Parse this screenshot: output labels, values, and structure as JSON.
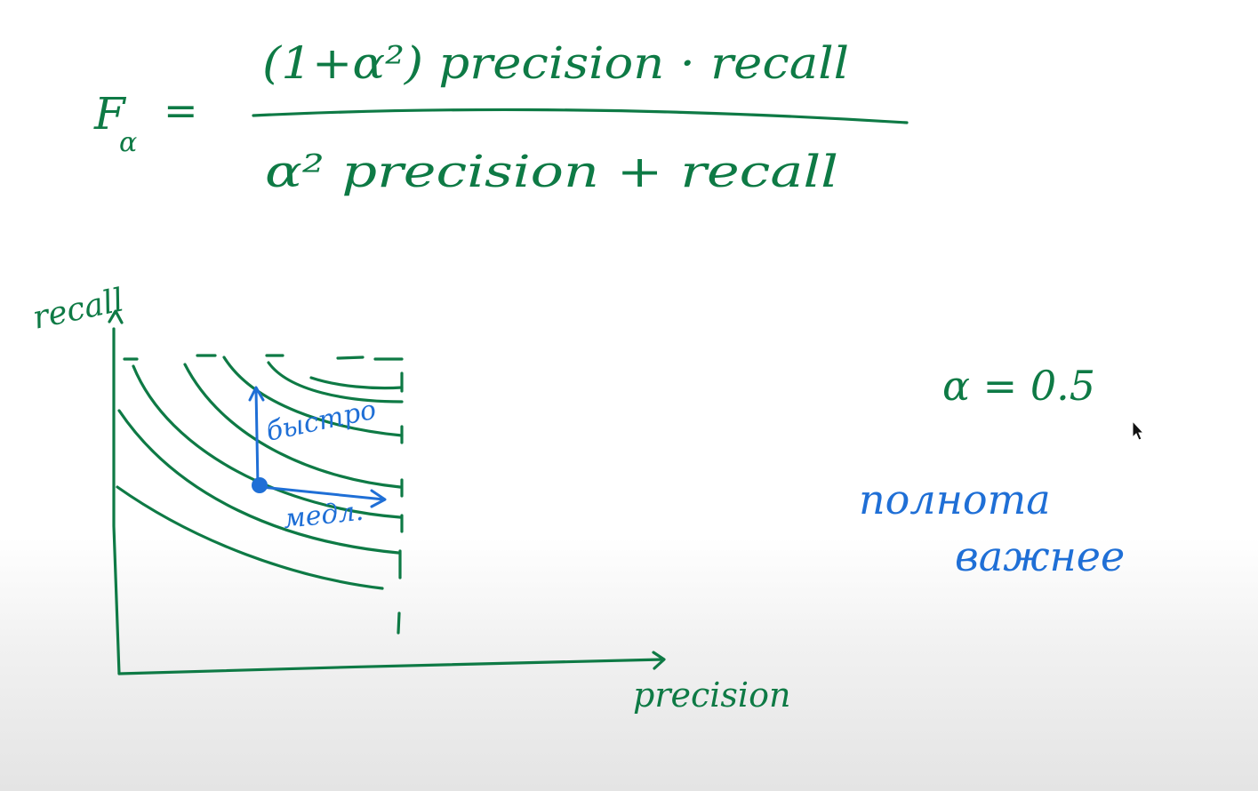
{
  "formula": {
    "lhs": "F",
    "lhs_subscript": "α",
    "equals": "=",
    "numerator": "(1+α²) precision · recall",
    "denominator": "α² precision + recall"
  },
  "plot": {
    "y_axis_label": "recall",
    "x_axis_label": "precision",
    "arrow_up_label": "быстро",
    "arrow_right_label": "медл."
  },
  "side_note": {
    "alpha_value": "α = 0.5",
    "line1": "полнота",
    "line2": "важнее"
  },
  "colors": {
    "green_ink": "#0e7a45",
    "blue_ink": "#1f6fd6"
  }
}
